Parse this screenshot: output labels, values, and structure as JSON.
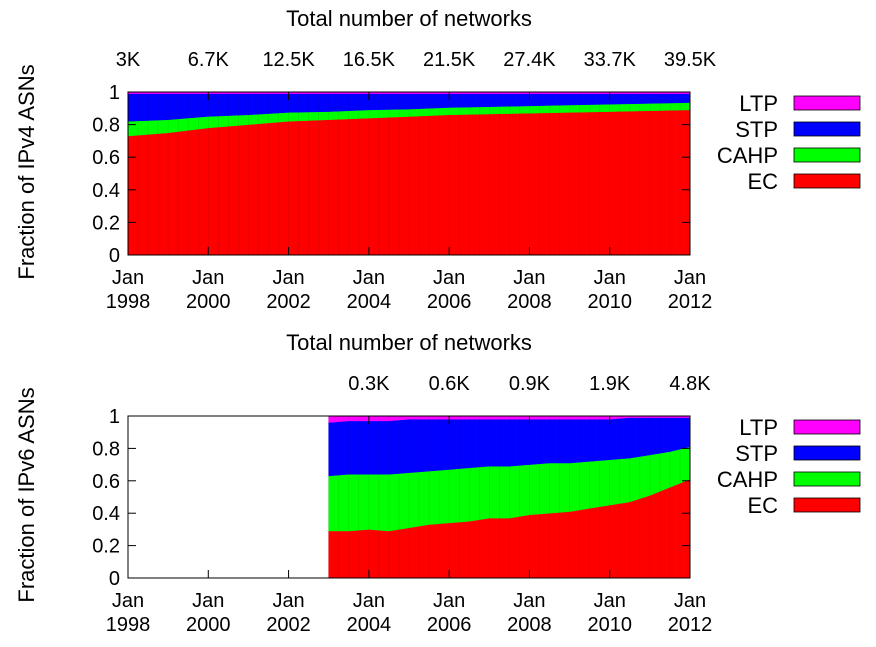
{
  "chart_data": [
    {
      "type": "area",
      "ylabel": "Fraction of IPv4 ASNs",
      "top_axis_title": "Total number of networks",
      "top_ticks": [
        {
          "year": 1998.0,
          "label": "3K"
        },
        {
          "year": 2000.0,
          "label": "6.7K"
        },
        {
          "year": 2002.0,
          "label": "12.5K"
        },
        {
          "year": 2004.0,
          "label": "16.5K"
        },
        {
          "year": 2006.0,
          "label": "21.5K"
        },
        {
          "year": 2008.0,
          "label": "27.4K"
        },
        {
          "year": 2010.0,
          "label": "33.7K"
        },
        {
          "year": 2012.0,
          "label": "39.5K"
        }
      ],
      "x_ticks": [
        {
          "year": 1998,
          "month": "Jan",
          "label": "1998"
        },
        {
          "year": 2000,
          "month": "Jan",
          "label": "2000"
        },
        {
          "year": 2002,
          "month": "Jan",
          "label": "2002"
        },
        {
          "year": 2004,
          "month": "Jan",
          "label": "2004"
        },
        {
          "year": 2006,
          "month": "Jan",
          "label": "2006"
        },
        {
          "year": 2008,
          "month": "Jan",
          "label": "2008"
        },
        {
          "year": 2010,
          "month": "Jan",
          "label": "2010"
        },
        {
          "year": 2012,
          "month": "Jan",
          "label": "2012"
        }
      ],
      "y_ticks": [
        "0",
        "0.2",
        "0.4",
        "0.6",
        "0.8",
        "1"
      ],
      "ylim": [
        0,
        1
      ],
      "xlim": [
        1998,
        2012
      ],
      "stack_order": [
        "EC",
        "CAHP",
        "STP",
        "LTP"
      ],
      "x": [
        1998.0,
        1999.0,
        2000.0,
        2001.0,
        2002.0,
        2003.0,
        2004.0,
        2005.0,
        2006.0,
        2007.0,
        2008.0,
        2009.0,
        2010.0,
        2011.0,
        2012.0
      ],
      "series": [
        {
          "name": "EC",
          "color": "#ff0000",
          "values": [
            0.73,
            0.75,
            0.78,
            0.8,
            0.82,
            0.83,
            0.84,
            0.85,
            0.86,
            0.865,
            0.87,
            0.875,
            0.88,
            0.885,
            0.89
          ]
        },
        {
          "name": "CAHP",
          "color": "#00ff00",
          "values": [
            0.09,
            0.08,
            0.07,
            0.06,
            0.055,
            0.05,
            0.05,
            0.045,
            0.045,
            0.045,
            0.045,
            0.045,
            0.045,
            0.045,
            0.045
          ]
        },
        {
          "name": "STP",
          "color": "#0000ff",
          "values": [
            0.17,
            0.16,
            0.14,
            0.13,
            0.115,
            0.11,
            0.1,
            0.095,
            0.085,
            0.08,
            0.075,
            0.07,
            0.065,
            0.06,
            0.055
          ]
        },
        {
          "name": "LTP",
          "color": "#ff00ff",
          "values": [
            0.01,
            0.01,
            0.01,
            0.01,
            0.01,
            0.01,
            0.01,
            0.01,
            0.01,
            0.01,
            0.01,
            0.01,
            0.01,
            0.01,
            0.01
          ]
        }
      ]
    },
    {
      "type": "area",
      "ylabel": "Fraction of IPv6 ASNs",
      "top_axis_title": "Total number of networks",
      "top_ticks": [
        {
          "year": 2004.0,
          "label": "0.3K"
        },
        {
          "year": 2006.0,
          "label": "0.6K"
        },
        {
          "year": 2008.0,
          "label": "0.9K"
        },
        {
          "year": 2010.0,
          "label": "1.9K"
        },
        {
          "year": 2012.0,
          "label": "4.8K"
        }
      ],
      "x_ticks": [
        {
          "year": 1998,
          "month": "Jan",
          "label": "1998"
        },
        {
          "year": 2000,
          "month": "Jan",
          "label": "2000"
        },
        {
          "year": 2002,
          "month": "Jan",
          "label": "2002"
        },
        {
          "year": 2004,
          "month": "Jan",
          "label": "2004"
        },
        {
          "year": 2006,
          "month": "Jan",
          "label": "2006"
        },
        {
          "year": 2008,
          "month": "Jan",
          "label": "2008"
        },
        {
          "year": 2010,
          "month": "Jan",
          "label": "2010"
        },
        {
          "year": 2012,
          "month": "Jan",
          "label": "2012"
        }
      ],
      "y_ticks": [
        "0",
        "0.2",
        "0.4",
        "0.6",
        "0.8",
        "1"
      ],
      "ylim": [
        0,
        1
      ],
      "xlim": [
        1998,
        2012
      ],
      "stack_order": [
        "EC",
        "CAHP",
        "STP",
        "LTP"
      ],
      "x": [
        2003.0,
        2003.5,
        2004.0,
        2004.5,
        2005.0,
        2005.5,
        2006.0,
        2006.5,
        2007.0,
        2007.5,
        2008.0,
        2008.5,
        2009.0,
        2009.5,
        2010.0,
        2010.5,
        2011.0,
        2011.5,
        2012.0
      ],
      "series": [
        {
          "name": "EC",
          "color": "#ff0000",
          "values": [
            0.29,
            0.29,
            0.3,
            0.29,
            0.31,
            0.33,
            0.34,
            0.35,
            0.37,
            0.37,
            0.39,
            0.4,
            0.41,
            0.43,
            0.45,
            0.47,
            0.51,
            0.56,
            0.61
          ]
        },
        {
          "name": "CAHP",
          "color": "#00ff00",
          "values": [
            0.34,
            0.35,
            0.34,
            0.35,
            0.34,
            0.33,
            0.33,
            0.33,
            0.32,
            0.32,
            0.31,
            0.31,
            0.3,
            0.29,
            0.28,
            0.27,
            0.25,
            0.22,
            0.2
          ]
        },
        {
          "name": "STP",
          "color": "#0000ff",
          "values": [
            0.33,
            0.33,
            0.33,
            0.33,
            0.33,
            0.32,
            0.31,
            0.3,
            0.29,
            0.29,
            0.28,
            0.27,
            0.27,
            0.26,
            0.25,
            0.25,
            0.23,
            0.21,
            0.18
          ]
        },
        {
          "name": "LTP",
          "color": "#ff00ff",
          "values": [
            0.04,
            0.03,
            0.03,
            0.03,
            0.02,
            0.02,
            0.02,
            0.02,
            0.02,
            0.02,
            0.02,
            0.02,
            0.02,
            0.02,
            0.02,
            0.01,
            0.01,
            0.01,
            0.01
          ]
        }
      ]
    }
  ],
  "legend": {
    "order": [
      "LTP",
      "STP",
      "CAHP",
      "EC"
    ],
    "colors": {
      "LTP": "#ff00ff",
      "STP": "#0000ff",
      "CAHP": "#00ff00",
      "EC": "#ff0000"
    }
  }
}
